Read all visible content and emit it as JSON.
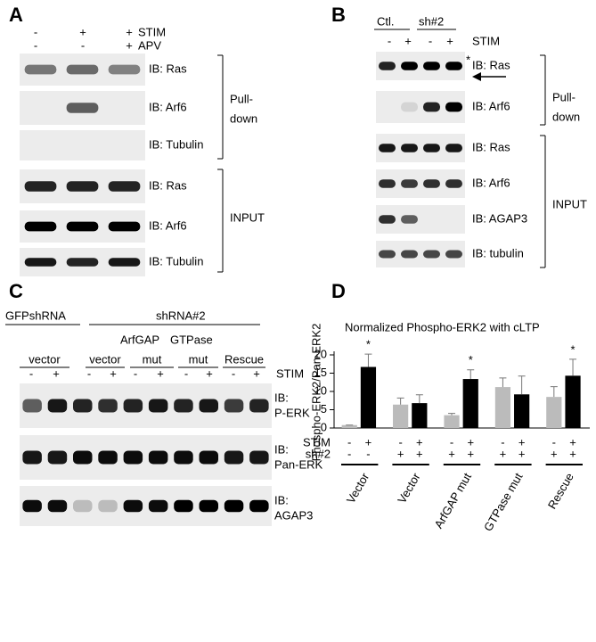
{
  "panel_a": {
    "label": "A",
    "conditions": [
      {
        "name": "STIM",
        "signs": [
          "-",
          "+",
          "+"
        ]
      },
      {
        "name": "APV",
        "signs": [
          "-",
          "-",
          "+"
        ]
      }
    ],
    "blots": [
      "IB: Ras",
      "IB: Arf6",
      "IB: Tubulin",
      "IB: Ras",
      "IB: Arf6",
      "IB: Tubulin"
    ],
    "brackets": [
      [
        "Pull-",
        "down"
      ],
      [
        "INPUT"
      ]
    ]
  },
  "panel_b": {
    "label": "B",
    "groups": [
      "Ctl.",
      "sh#2"
    ],
    "condition": {
      "name": "STIM",
      "signs": [
        "-",
        "+",
        "-",
        "+"
      ]
    },
    "marker": "*",
    "blots": [
      "IB: Ras",
      "IB: Arf6",
      "IB: Ras",
      "IB: Arf6",
      "IB: AGAP3",
      "IB: tubulin"
    ],
    "brackets": [
      [
        "Pull-",
        "down"
      ],
      [
        "INPUT"
      ]
    ]
  },
  "panel_c": {
    "label": "C",
    "groups": [
      "GFPshRNA",
      "shRNA#2"
    ],
    "constructs": [
      "ArfGAP",
      "GTPase"
    ],
    "lanes": [
      "vector",
      "vector",
      "mut",
      "mut",
      "Rescue"
    ],
    "condition": {
      "name": "STIM",
      "signs": [
        "-",
        "+",
        "-",
        "+",
        "-",
        "+",
        "-",
        "+",
        "-",
        "+"
      ]
    },
    "blots": [
      [
        "IB:",
        "P-ERK"
      ],
      [
        "IB:",
        "Pan-ERK"
      ],
      [
        "IB:",
        "AGAP3"
      ]
    ]
  },
  "chart_data": {
    "type": "bar",
    "label": "D",
    "title": "Normalized Phospho-ERK2 with cLTP",
    "y_label": "Phospho-ERK2/Pan-ERK2",
    "categories": [
      "Vector",
      "Vector",
      "ArfGAP mut",
      "GTPase mut",
      "Rescue"
    ],
    "conditions": [
      {
        "name": "STIM",
        "signs": [
          "-",
          "+",
          "-",
          "+",
          "-",
          "+",
          "-",
          "+",
          "-",
          "+"
        ]
      },
      {
        "name": "sh#2",
        "signs": [
          "-",
          "-",
          "+",
          "+",
          "+",
          "+",
          "+",
          "+",
          "+",
          "+"
        ]
      }
    ],
    "series": [
      {
        "color": "#bbbbbb",
        "values": [
          0.8,
          6.4,
          3.5,
          11.2,
          8.5
        ],
        "errors": [
          0,
          1.8,
          0.5,
          2.5,
          2.8
        ]
      },
      {
        "color": "#000000",
        "values": [
          16.7,
          6.8,
          13.4,
          9.2,
          14.3
        ],
        "errors": [
          3.5,
          2.3,
          2.5,
          5,
          4.5
        ],
        "annotations": [
          "*",
          null,
          "*",
          null,
          "*"
        ]
      }
    ],
    "ylim": [
      0,
      20
    ],
    "yticks": [
      0,
      5,
      10,
      15,
      20
    ]
  }
}
